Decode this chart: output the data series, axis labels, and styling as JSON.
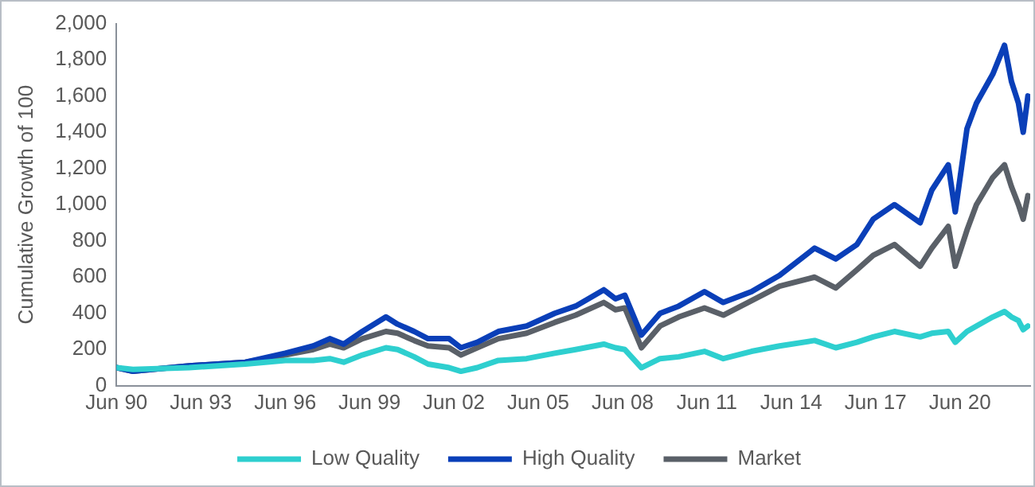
{
  "chart_data": {
    "type": "line",
    "ylabel": "Cumulative Growth of 100",
    "x": [
      "1990-06",
      "1991-01",
      "1993-01",
      "1995-01",
      "1996-06",
      "1997-06",
      "1998-01",
      "1998-07",
      "1999-03",
      "2000-01",
      "2000-06",
      "2001-01",
      "2001-07",
      "2002-04",
      "2002-09",
      "2003-04",
      "2004-01",
      "2005-01",
      "2006-01",
      "2006-10",
      "2007-10",
      "2008-03",
      "2008-07",
      "2009-02",
      "2009-10",
      "2010-06",
      "2011-05",
      "2012-01",
      "2013-01",
      "2014-01",
      "2015-04",
      "2016-01",
      "2016-10",
      "2017-05",
      "2018-02",
      "2019-01",
      "2019-06",
      "2020-01",
      "2020-04",
      "2020-09",
      "2021-01",
      "2021-08",
      "2022-01",
      "2022-04",
      "2022-07",
      "2022-09",
      "2022-11"
    ],
    "series": [
      {
        "name": "Low Quality",
        "color": "#2ecfcf",
        "values": [
          100,
          90,
          100,
          120,
          140,
          140,
          150,
          130,
          170,
          210,
          200,
          160,
          120,
          100,
          80,
          100,
          140,
          150,
          180,
          200,
          230,
          210,
          200,
          100,
          150,
          160,
          190,
          150,
          190,
          220,
          250,
          210,
          240,
          270,
          300,
          270,
          290,
          300,
          240,
          300,
          330,
          380,
          410,
          380,
          360,
          310,
          330
        ]
      },
      {
        "name": "High Quality",
        "color": "#0a3fb8",
        "values": [
          100,
          80,
          110,
          130,
          180,
          220,
          260,
          230,
          300,
          380,
          340,
          300,
          260,
          260,
          210,
          240,
          300,
          330,
          400,
          440,
          530,
          480,
          500,
          280,
          400,
          440,
          520,
          460,
          520,
          610,
          760,
          700,
          780,
          920,
          1000,
          900,
          1080,
          1220,
          960,
          1420,
          1560,
          1720,
          1880,
          1680,
          1560,
          1400,
          1600
        ]
      },
      {
        "name": "Market",
        "color": "#5a6068",
        "values": [
          100,
          80,
          110,
          130,
          170,
          200,
          230,
          210,
          260,
          300,
          290,
          250,
          220,
          210,
          170,
          210,
          260,
          290,
          350,
          390,
          460,
          420,
          430,
          210,
          330,
          380,
          430,
          390,
          470,
          550,
          600,
          540,
          640,
          720,
          780,
          660,
          760,
          880,
          660,
          860,
          1000,
          1150,
          1220,
          1100,
          1000,
          920,
          1050
        ]
      }
    ],
    "xlim": [
      "1990-06",
      "2022-12"
    ],
    "xticks": [
      {
        "value": "1990-06",
        "label": "Jun 90"
      },
      {
        "value": "1993-06",
        "label": "Jun 93"
      },
      {
        "value": "1996-06",
        "label": "Jun 96"
      },
      {
        "value": "1999-06",
        "label": "Jun 99"
      },
      {
        "value": "2002-06",
        "label": "Jun 02"
      },
      {
        "value": "2005-06",
        "label": "Jun 05"
      },
      {
        "value": "2008-06",
        "label": "Jun 08"
      },
      {
        "value": "2011-06",
        "label": "Jun 11"
      },
      {
        "value": "2014-06",
        "label": "Jun 14"
      },
      {
        "value": "2017-06",
        "label": "Jun 17"
      },
      {
        "value": "2020-06",
        "label": "Jun 20"
      }
    ],
    "ylim": [
      0,
      2000
    ],
    "yticks": [
      {
        "value": 0,
        "label": "0"
      },
      {
        "value": 200,
        "label": "200"
      },
      {
        "value": 400,
        "label": "400"
      },
      {
        "value": 600,
        "label": "600"
      },
      {
        "value": 800,
        "label": "800"
      },
      {
        "value": 1000,
        "label": "1,000"
      },
      {
        "value": 1200,
        "label": "1,200"
      },
      {
        "value": 1400,
        "label": "1,400"
      },
      {
        "value": 1600,
        "label": "1,600"
      },
      {
        "value": 1800,
        "label": "1,800"
      },
      {
        "value": 2000,
        "label": "2,000"
      }
    ],
    "grid": false,
    "legend": "bottom",
    "marker": "none",
    "line_style": "solid"
  }
}
